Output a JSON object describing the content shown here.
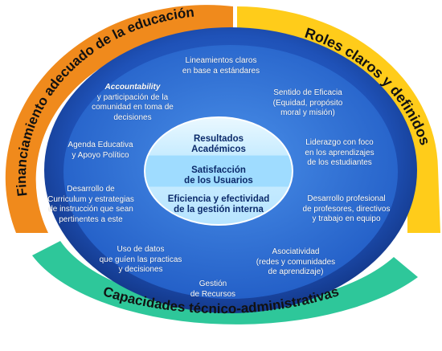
{
  "colors": {
    "orange_band": "#f08a1c",
    "yellow_band": "#ffcc1a",
    "teal_band": "#2ec79a",
    "outer_ring": "#1a3f9a",
    "inner_field": "#2f6fd0",
    "core_top": "#d8f0ff",
    "core_mid": "#a9e0ff",
    "core_bottom": "#bfe9ff"
  },
  "bands": {
    "left": "Financiamiento adecuado de la educación",
    "right": "Roles claros y definidos",
    "bottom": "Capacidades técnico-administrativas"
  },
  "core": {
    "top": [
      "Resultados",
      "Académicos"
    ],
    "middle": [
      "Satisfacción",
      "de los Usuarios"
    ],
    "bottom": [
      "Eficiencia y efectividad",
      "de la gestión interna"
    ]
  },
  "items": {
    "lineamientos": [
      "Lineamientos claros",
      "en base a estándares"
    ],
    "accountability_title": "Accountability",
    "accountability": [
      "y participación de la",
      "comunidad en toma de",
      "decisiones"
    ],
    "eficacia": [
      "Sentido de Eficacia",
      "(Equidad, propósito",
      "moral y misión)"
    ],
    "agenda": [
      "Agenda Educativa",
      "y Apoyo Político"
    ],
    "liderazgo": [
      "Liderazgo con foco",
      "en los aprendizajes",
      "de los estudiantes"
    ],
    "curriculum": [
      "Desarrollo de",
      "Curriculum y estrategias",
      "de instrucción que sean",
      "pertinentes a este"
    ],
    "profesional": [
      "Desarrollo profesional",
      "de profesores, directivos",
      "y trabajo en equipo"
    ],
    "datos": [
      "Uso de datos",
      "que guíen las practicas",
      "y decisiones"
    ],
    "asociatividad": [
      "Asociatividad",
      "(redes y comunidades",
      "de aprendizaje)"
    ],
    "gestion": [
      "Gestión",
      "de Recursos"
    ]
  }
}
